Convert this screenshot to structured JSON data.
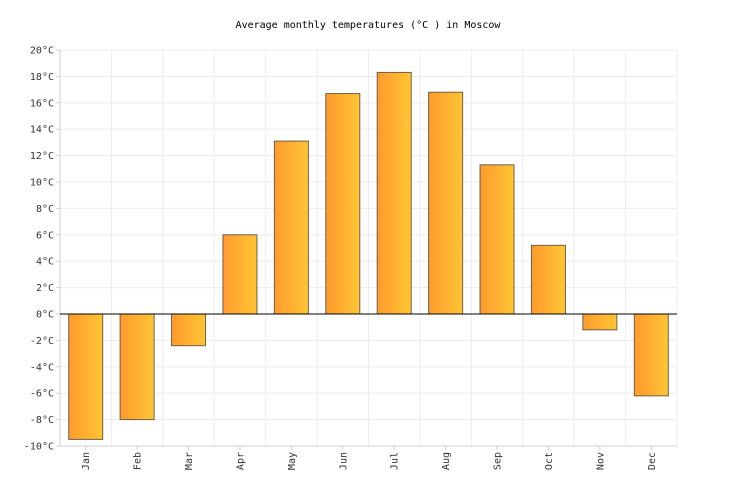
{
  "chart_data": {
    "type": "bar",
    "title": "Average monthly temperatures (°C ) in Moscow",
    "xlabel": "",
    "ylabel": "",
    "categories": [
      "Jan",
      "Feb",
      "Mar",
      "Apr",
      "May",
      "Jun",
      "Jul",
      "Aug",
      "Sep",
      "Oct",
      "Nov",
      "Dec"
    ],
    "values": [
      -9.5,
      -8.0,
      -2.4,
      6.0,
      13.1,
      16.7,
      18.3,
      16.8,
      11.3,
      5.2,
      -1.2,
      -6.2
    ],
    "ylim": [
      -10,
      20
    ],
    "yticks": [
      -10,
      -8,
      -6,
      -4,
      -2,
      0,
      2,
      4,
      6,
      8,
      10,
      12,
      14,
      16,
      18,
      20
    ],
    "ytick_suffix": "°C",
    "grid": true,
    "legend": "none",
    "bar_gradient": [
      "#ff9a2e",
      "#ffc534"
    ]
  }
}
